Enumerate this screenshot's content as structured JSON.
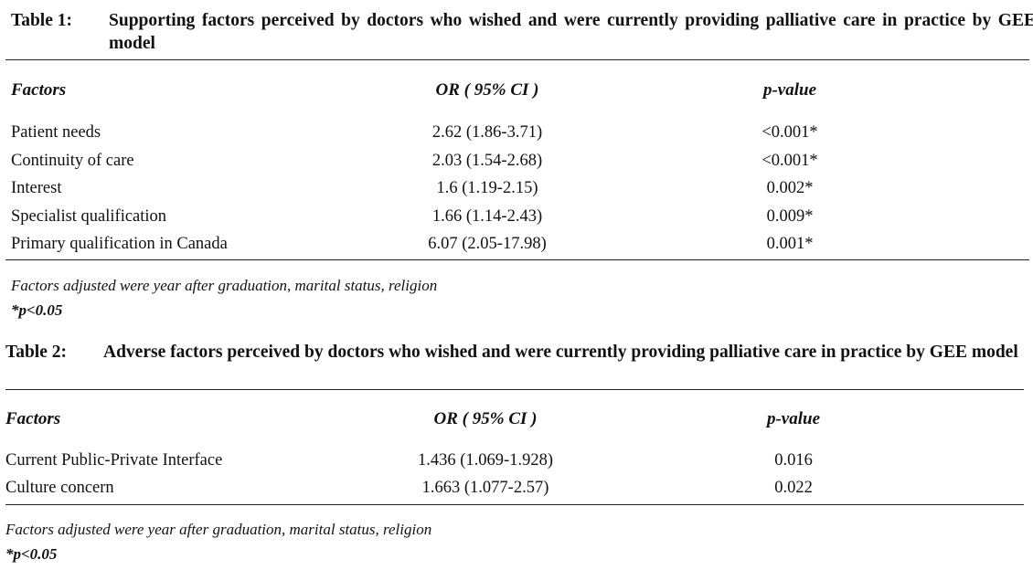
{
  "table1": {
    "label": "Table 1:",
    "caption": "Supporting factors perceived by doctors who wished and were currently providing palliative care in practice by GEE model",
    "headers": {
      "factor": "Factors",
      "or": "OR ( 95% CI )",
      "p": "p-value"
    },
    "rows": [
      {
        "factor": "Patient needs",
        "or": "2.62 (1.86-3.71)",
        "p": "<0.001*"
      },
      {
        "factor": "Continuity of care",
        "or": "2.03 (1.54-2.68)",
        "p": "<0.001*"
      },
      {
        "factor": "Interest",
        "or": "1.6 (1.19-2.15)",
        "p": "0.002*"
      },
      {
        "factor": "Specialist qualification",
        "or": "1.66 (1.14-2.43)",
        "p": "0.009*"
      },
      {
        "factor": "Primary qualification in Canada",
        "or": "6.07 (2.05-17.98)",
        "p": "0.001*"
      }
    ],
    "note": "Factors adjusted were year after graduation, marital status, religion",
    "sig": "*p<0.05"
  },
  "table2": {
    "label": "Table 2:",
    "caption": "Adverse factors perceived by doctors who wished and were currently providing palliative care in practice by GEE model",
    "headers": {
      "factor": "Factors",
      "or": "OR ( 95% CI )",
      "p": "p-value"
    },
    "rows": [
      {
        "factor": "Current Public-Private Interface",
        "or": "1.436 (1.069-1.928)",
        "p": "0.016"
      },
      {
        "factor": "Culture concern",
        "or": "1.663 (1.077-2.57)",
        "p": "0.022"
      }
    ],
    "note": "Factors adjusted were year after graduation, marital status, religion",
    "sig": "*p<0.05"
  }
}
